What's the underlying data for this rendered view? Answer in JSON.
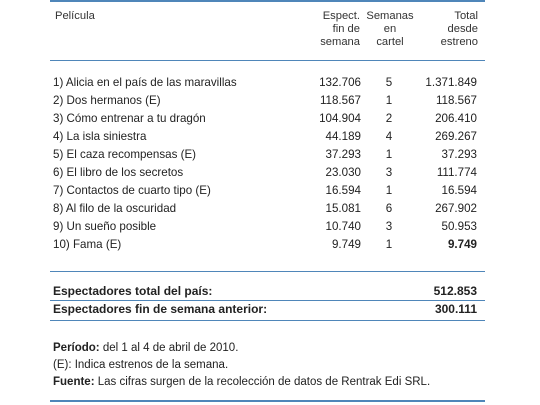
{
  "header": {
    "film": "Película",
    "weekend": [
      "Espect.",
      "fin de",
      "semana"
    ],
    "weeks": [
      "Semanas",
      "en",
      "cartel"
    ],
    "total": [
      "Total",
      "desde",
      "estreno"
    ]
  },
  "rows": [
    {
      "title": "1) Alicia en el país de las maravillas",
      "weekend": "132.706",
      "weeks": "5",
      "total": "1.371.849"
    },
    {
      "title": "2) Dos hermanos (E)",
      "weekend": "118.567",
      "weeks": "1",
      "total": "118.567"
    },
    {
      "title": "3) Cómo entrenar a tu dragón",
      "weekend": "104.904",
      "weeks": "2",
      "total": "206.410"
    },
    {
      "title": "4) La isla siniestra",
      "weekend": "44.189",
      "weeks": "4",
      "total": "269.267"
    },
    {
      "title": "5) El caza recompensas (E)",
      "weekend": "37.293",
      "weeks": "1",
      "total": "37.293"
    },
    {
      "title": "6) El libro de los secretos",
      "weekend": "23.030",
      "weeks": "3",
      "total": "111.774"
    },
    {
      "title": "7) Contactos de cuarto tipo (E)",
      "weekend": "16.594",
      "weeks": "1",
      "total": "16.594"
    },
    {
      "title": "8) Al filo de la oscuridad",
      "weekend": "15.081",
      "weeks": "6",
      "total": "267.902"
    },
    {
      "title": "9) Un sueño posible",
      "weekend": "10.740",
      "weeks": "3",
      "total": "50.953"
    },
    {
      "title": "10) Fama (E)",
      "weekend": "9.749",
      "weeks": "1",
      "total": "9.749"
    }
  ],
  "summary": {
    "total_label": "Espectadores total del país:",
    "total_value": "512.853",
    "prev_label": "Espectadores fin de semana anterior:",
    "prev_value": "300.111"
  },
  "notes": {
    "period_label": "Período:",
    "period_text": "del 1 al 4 de abril de 2010.",
    "e_text": "(E): Indica estrenos de la semana.",
    "source_label": "Fuente:",
    "source_text": "Las cifras surgen de la recolección de datos de Rentrak Edi SRL."
  },
  "colors": {
    "accent_blue": "#4f86b9"
  }
}
